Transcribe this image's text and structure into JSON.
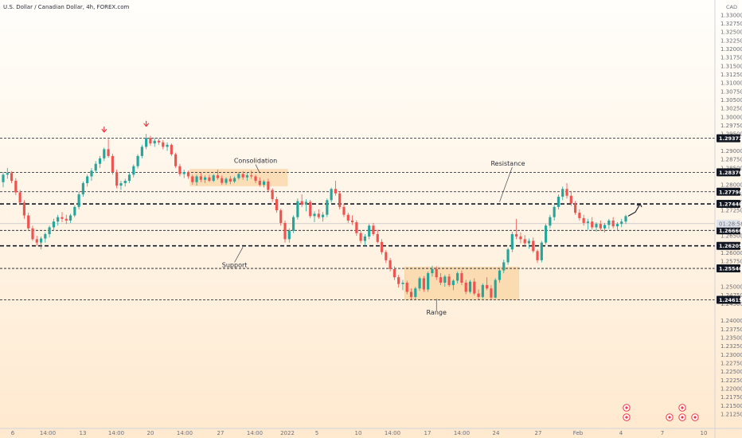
{
  "header": {
    "title": "U.S. Dollar / Canadian Dollar, 4h, FOREX.com",
    "currency": "CAD"
  },
  "chart_data": {
    "type": "candlestick",
    "instrument": "U.S. Dollar / Canadian Dollar",
    "timeframe": "4h",
    "source": "FOREX.com",
    "ylim": [
      1.2125,
      1.3335
    ],
    "y_ticks": [
      1.33,
      1.3275,
      1.325,
      1.3225,
      1.32,
      1.3175,
      1.315,
      1.3125,
      1.31,
      1.3075,
      1.305,
      1.3025,
      1.3,
      1.2975,
      1.295,
      1.29,
      1.2875,
      1.285,
      1.28,
      1.2775,
      1.275,
      1.2725,
      1.265,
      1.26,
      1.2575,
      1.25,
      1.2475,
      1.245,
      1.24,
      1.2375,
      1.235,
      1.2325,
      1.23,
      1.2275,
      1.225,
      1.2225,
      1.22,
      1.2175,
      1.215,
      1.2125
    ],
    "x_ticks": [
      "6",
      "14:00",
      "13",
      "14:00",
      "20",
      "14:00",
      "27",
      "14:00",
      "2022",
      "5",
      "10",
      "14:00",
      "17",
      "14:00",
      "24",
      "27",
      "Feb",
      "4",
      "7",
      "10"
    ],
    "levels": [
      {
        "label": "1.29372",
        "value": 1.29372,
        "style": "dashed-thin"
      },
      {
        "label": "1.28370",
        "value": 1.2837,
        "style": "dashed-thin"
      },
      {
        "label": "1.27798",
        "value": 1.27798,
        "style": "dashed-thin"
      },
      {
        "label": "1.27440",
        "value": 1.2744,
        "style": "dashed-bold"
      },
      {
        "label": "1.26660",
        "value": 1.2666,
        "style": "dashed-thin"
      },
      {
        "label": "1.26205",
        "value": 1.26205,
        "style": "dashed-bold"
      },
      {
        "label": "1.25540",
        "value": 1.2554,
        "style": "dashed-thin"
      },
      {
        "label": "1.24615",
        "value": 1.24615,
        "style": "dashed-thin"
      }
    ],
    "current_price": {
      "label": "01:28:58",
      "value": 1.2686
    },
    "annotations": [
      {
        "text": "Consolidation",
        "x_index": 60,
        "value": 1.2865
      },
      {
        "text": "Resistance",
        "x_index": 120,
        "value": 1.2857
      },
      {
        "text": "Support",
        "x_index": 55,
        "value": 1.2558
      },
      {
        "text": "Range",
        "x_index": 103,
        "value": 1.2418
      }
    ],
    "zones": [
      {
        "name": "consolidation-zone",
        "x_start": 45,
        "x_end": 67,
        "low": 1.2797,
        "high": 1.2846
      },
      {
        "name": "range-zone",
        "x_start": 96,
        "x_end": 122,
        "low": 1.24615,
        "high": 1.2558
      }
    ],
    "colors": {
      "up": "#26a69a",
      "down": "#ef5350",
      "marker": "#f23645",
      "axis_text": "#6b6f78"
    },
    "candles": [
      [
        1.2808,
        1.2838,
        1.2793,
        1.283
      ],
      [
        1.283,
        1.285,
        1.2818,
        1.2835
      ],
      [
        1.2835,
        1.284,
        1.2805,
        1.2812
      ],
      [
        1.2812,
        1.282,
        1.277,
        1.2778
      ],
      [
        1.2778,
        1.2785,
        1.274,
        1.2748
      ],
      [
        1.2748,
        1.2755,
        1.27,
        1.271
      ],
      [
        1.271,
        1.2718,
        1.2665,
        1.2672
      ],
      [
        1.2672,
        1.268,
        1.2635,
        1.264
      ],
      [
        1.264,
        1.265,
        1.262,
        1.263
      ],
      [
        1.263,
        1.2648,
        1.261,
        1.2642
      ],
      [
        1.2642,
        1.266,
        1.263,
        1.2655
      ],
      [
        1.2655,
        1.268,
        1.2645,
        1.2675
      ],
      [
        1.2675,
        1.27,
        1.2665,
        1.2692
      ],
      [
        1.2692,
        1.2712,
        1.268,
        1.2705
      ],
      [
        1.2705,
        1.272,
        1.269,
        1.27
      ],
      [
        1.27,
        1.2712,
        1.2685,
        1.2695
      ],
      [
        1.2695,
        1.2715,
        1.2688,
        1.271
      ],
      [
        1.271,
        1.274,
        1.2705,
        1.2735
      ],
      [
        1.2735,
        1.278,
        1.2728,
        1.2772
      ],
      [
        1.2772,
        1.281,
        1.2765,
        1.2805
      ],
      [
        1.2805,
        1.283,
        1.2795,
        1.2825
      ],
      [
        1.2825,
        1.285,
        1.2812,
        1.2842
      ],
      [
        1.2842,
        1.287,
        1.2835,
        1.2862
      ],
      [
        1.2862,
        1.2885,
        1.285,
        1.2878
      ],
      [
        1.2878,
        1.291,
        1.287,
        1.2905
      ],
      [
        1.2905,
        1.2935,
        1.288,
        1.2885
      ],
      [
        1.2885,
        1.2892,
        1.283,
        1.2838
      ],
      [
        1.2838,
        1.2845,
        1.279,
        1.2798
      ],
      [
        1.2798,
        1.2812,
        1.2785,
        1.2805
      ],
      [
        1.2805,
        1.2818,
        1.2795,
        1.2812
      ],
      [
        1.2812,
        1.2835,
        1.2805,
        1.283
      ],
      [
        1.283,
        1.286,
        1.2822,
        1.2855
      ],
      [
        1.2855,
        1.289,
        1.2848,
        1.2885
      ],
      [
        1.2885,
        1.2918,
        1.2878,
        1.2912
      ],
      [
        1.2912,
        1.295,
        1.2905,
        1.2938
      ],
      [
        1.2938,
        1.2945,
        1.2915,
        1.2922
      ],
      [
        1.2922,
        1.2938,
        1.2912,
        1.293
      ],
      [
        1.293,
        1.2936,
        1.2918,
        1.2925
      ],
      [
        1.2925,
        1.2932,
        1.2905,
        1.2912
      ],
      [
        1.2912,
        1.2925,
        1.29,
        1.2918
      ],
      [
        1.2918,
        1.2922,
        1.2885,
        1.289
      ],
      [
        1.289,
        1.2895,
        1.285,
        1.2855
      ],
      [
        1.2855,
        1.2862,
        1.2825,
        1.2832
      ],
      [
        1.2832,
        1.2845,
        1.282,
        1.2838
      ],
      [
        1.2838,
        1.2842,
        1.2818,
        1.2825
      ],
      [
        1.2825,
        1.283,
        1.28,
        1.2808
      ],
      [
        1.2808,
        1.283,
        1.2798,
        1.2825
      ],
      [
        1.2825,
        1.2835,
        1.2808,
        1.2815
      ],
      [
        1.2815,
        1.2828,
        1.2805,
        1.2822
      ],
      [
        1.2822,
        1.283,
        1.2808,
        1.2812
      ],
      [
        1.2812,
        1.2832,
        1.2808,
        1.2828
      ],
      [
        1.2828,
        1.2845,
        1.2815,
        1.282
      ],
      [
        1.282,
        1.2828,
        1.28,
        1.2806
      ],
      [
        1.2806,
        1.2822,
        1.28,
        1.2818
      ],
      [
        1.2818,
        1.2826,
        1.2802,
        1.281
      ],
      [
        1.281,
        1.2825,
        1.2805,
        1.282
      ],
      [
        1.282,
        1.2838,
        1.2815,
        1.2832
      ],
      [
        1.2832,
        1.284,
        1.2815,
        1.2822
      ],
      [
        1.2822,
        1.2835,
        1.2812,
        1.2828
      ],
      [
        1.2828,
        1.2842,
        1.2818,
        1.2825
      ],
      [
        1.2825,
        1.283,
        1.2805,
        1.2812
      ],
      [
        1.2812,
        1.2822,
        1.2795,
        1.28
      ],
      [
        1.28,
        1.2815,
        1.2792,
        1.281
      ],
      [
        1.281,
        1.2818,
        1.278,
        1.2785
      ],
      [
        1.2785,
        1.279,
        1.275,
        1.2758
      ],
      [
        1.2758,
        1.2765,
        1.2718,
        1.2725
      ],
      [
        1.2725,
        1.273,
        1.268,
        1.2688
      ],
      [
        1.2688,
        1.2695,
        1.263,
        1.264
      ],
      [
        1.264,
        1.2672,
        1.263,
        1.2665
      ],
      [
        1.2665,
        1.271,
        1.2658,
        1.2705
      ],
      [
        1.2705,
        1.276,
        1.2698,
        1.2752
      ],
      [
        1.2752,
        1.2772,
        1.2735,
        1.2742
      ],
      [
        1.2742,
        1.2758,
        1.2722,
        1.275
      ],
      [
        1.275,
        1.2756,
        1.2702,
        1.2708
      ],
      [
        1.2708,
        1.2722,
        1.269,
        1.2715
      ],
      [
        1.2715,
        1.2728,
        1.27,
        1.2705
      ],
      [
        1.2705,
        1.272,
        1.2692,
        1.2712
      ],
      [
        1.2712,
        1.276,
        1.2705,
        1.2755
      ],
      [
        1.2755,
        1.2792,
        1.2748,
        1.2788
      ],
      [
        1.2788,
        1.2812,
        1.2768,
        1.2775
      ],
      [
        1.2775,
        1.2782,
        1.2728,
        1.2735
      ],
      [
        1.2735,
        1.2745,
        1.2705,
        1.2712
      ],
      [
        1.2712,
        1.2718,
        1.2688,
        1.2695
      ],
      [
        1.2695,
        1.271,
        1.2682,
        1.269
      ],
      [
        1.269,
        1.2696,
        1.265,
        1.2658
      ],
      [
        1.2658,
        1.2665,
        1.2628,
        1.2635
      ],
      [
        1.2635,
        1.2655,
        1.262,
        1.2648
      ],
      [
        1.2648,
        1.2685,
        1.264,
        1.268
      ],
      [
        1.268,
        1.2688,
        1.265,
        1.2655
      ],
      [
        1.2655,
        1.2668,
        1.2628,
        1.2632
      ],
      [
        1.2632,
        1.264,
        1.2595,
        1.2602
      ],
      [
        1.2602,
        1.2608,
        1.257,
        1.2578
      ],
      [
        1.2578,
        1.2585,
        1.2545,
        1.2552
      ],
      [
        1.2552,
        1.256,
        1.252,
        1.2528
      ],
      [
        1.2528,
        1.2535,
        1.2498,
        1.2508
      ],
      [
        1.2508,
        1.252,
        1.249,
        1.2512
      ],
      [
        1.2512,
        1.2518,
        1.2478,
        1.2485
      ],
      [
        1.2485,
        1.2495,
        1.2462,
        1.247
      ],
      [
        1.247,
        1.25,
        1.2462,
        1.2495
      ],
      [
        1.2495,
        1.253,
        1.2488,
        1.2525
      ],
      [
        1.2525,
        1.2532,
        1.2485,
        1.2492
      ],
      [
        1.2492,
        1.2545,
        1.2485,
        1.254
      ],
      [
        1.254,
        1.2562,
        1.253,
        1.2552
      ],
      [
        1.2552,
        1.256,
        1.252,
        1.2528
      ],
      [
        1.2528,
        1.254,
        1.2505,
        1.2512
      ],
      [
        1.2512,
        1.2535,
        1.25,
        1.253
      ],
      [
        1.253,
        1.2538,
        1.25,
        1.2505
      ],
      [
        1.2505,
        1.2522,
        1.249,
        1.2518
      ],
      [
        1.2518,
        1.2545,
        1.251,
        1.254
      ],
      [
        1.254,
        1.2548,
        1.2505,
        1.2512
      ],
      [
        1.2512,
        1.252,
        1.2478,
        1.2485
      ],
      [
        1.2485,
        1.252,
        1.248,
        1.2515
      ],
      [
        1.2515,
        1.2525,
        1.2475,
        1.248
      ],
      [
        1.248,
        1.2492,
        1.2462,
        1.247
      ],
      [
        1.247,
        1.251,
        1.2465,
        1.2505
      ],
      [
        1.2505,
        1.2528,
        1.249,
        1.2495
      ],
      [
        1.2495,
        1.2505,
        1.2462,
        1.2468
      ],
      [
        1.2468,
        1.2525,
        1.2465,
        1.252
      ],
      [
        1.252,
        1.2555,
        1.2512,
        1.2548
      ],
      [
        1.2548,
        1.258,
        1.254,
        1.2572
      ],
      [
        1.2572,
        1.2615,
        1.2565,
        1.261
      ],
      [
        1.261,
        1.2662,
        1.2602,
        1.2655
      ],
      [
        1.2655,
        1.27,
        1.264,
        1.2648
      ],
      [
        1.2648,
        1.266,
        1.2628,
        1.264
      ],
      [
        1.264,
        1.2652,
        1.2618,
        1.2628
      ],
      [
        1.2628,
        1.2642,
        1.2612,
        1.2635
      ],
      [
        1.2635,
        1.2645,
        1.26,
        1.2605
      ],
      [
        1.2605,
        1.261,
        1.257,
        1.2578
      ],
      [
        1.2578,
        1.2635,
        1.2572,
        1.263
      ],
      [
        1.263,
        1.2685,
        1.2625,
        1.268
      ],
      [
        1.268,
        1.2712,
        1.2672,
        1.2705
      ],
      [
        1.2705,
        1.274,
        1.2695,
        1.2735
      ],
      [
        1.2735,
        1.2772,
        1.2728,
        1.2765
      ],
      [
        1.2765,
        1.2795,
        1.2755,
        1.2788
      ],
      [
        1.2788,
        1.2805,
        1.276,
        1.2768
      ],
      [
        1.2768,
        1.2782,
        1.2738,
        1.2745
      ],
      [
        1.2745,
        1.2752,
        1.2712,
        1.2718
      ],
      [
        1.2718,
        1.2728,
        1.2695,
        1.2702
      ],
      [
        1.2702,
        1.2712,
        1.268,
        1.2688
      ],
      [
        1.2688,
        1.27,
        1.2668,
        1.2692
      ],
      [
        1.2692,
        1.2705,
        1.2668,
        1.2675
      ],
      [
        1.2675,
        1.269,
        1.2662,
        1.2685
      ],
      [
        1.2685,
        1.2695,
        1.2665,
        1.2672
      ],
      [
        1.2672,
        1.2688,
        1.266,
        1.2682
      ],
      [
        1.2682,
        1.27,
        1.267,
        1.2695
      ],
      [
        1.2695,
        1.2705,
        1.2672,
        1.2678
      ],
      [
        1.2678,
        1.269,
        1.2665,
        1.2685
      ],
      [
        1.2685,
        1.27,
        1.2675,
        1.2692
      ],
      [
        1.2692,
        1.2712,
        1.2685,
        1.2708
      ]
    ]
  }
}
